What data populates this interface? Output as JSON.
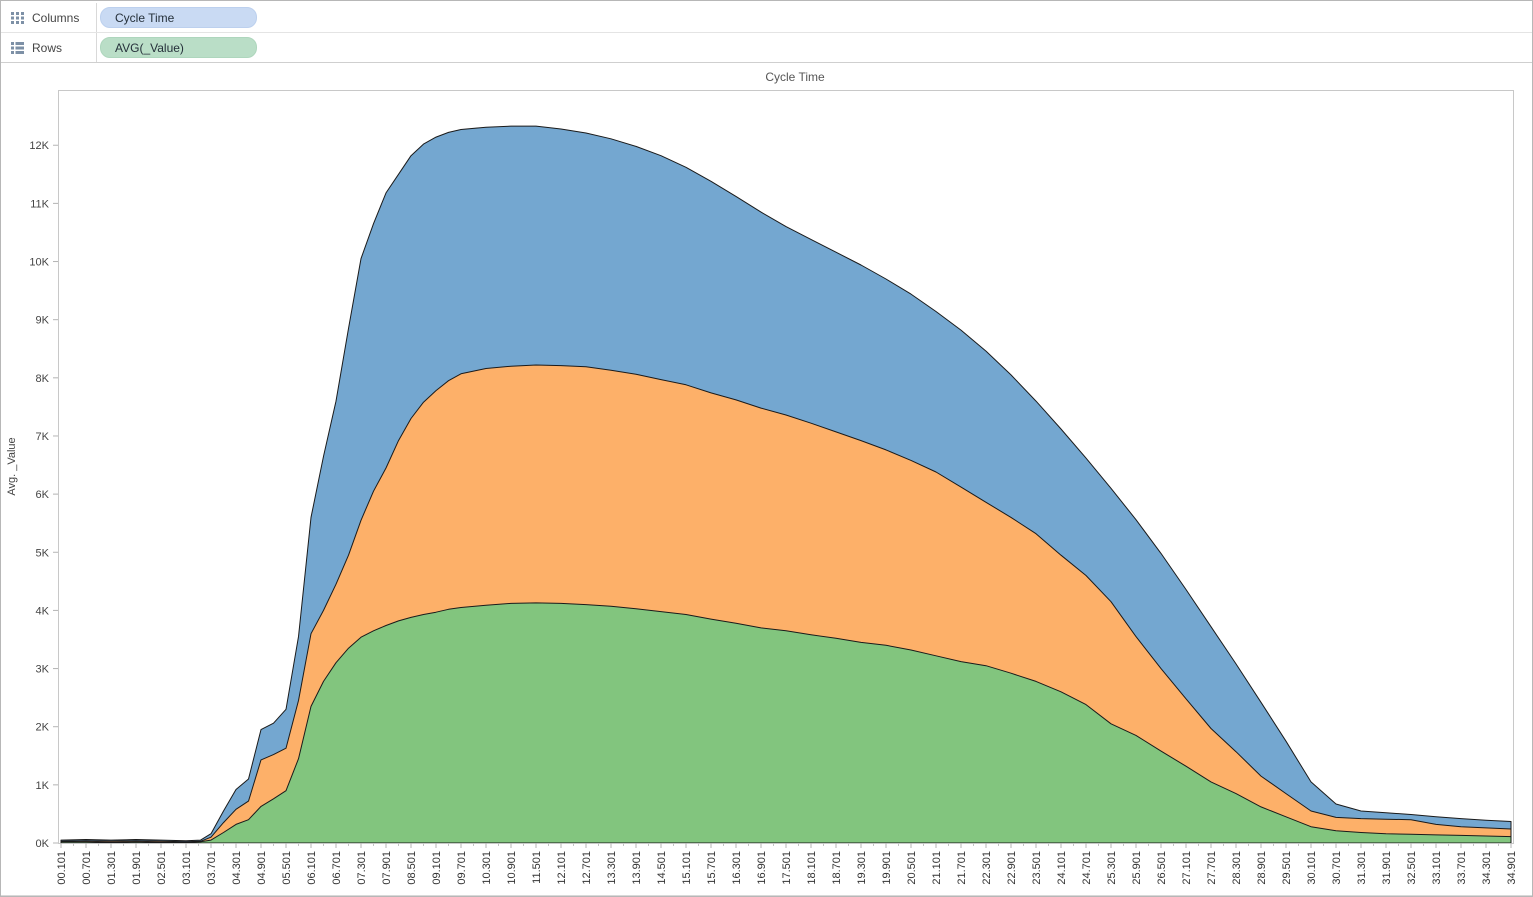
{
  "shelves": {
    "columns": {
      "label": "Columns",
      "pill": "Cycle Time"
    },
    "rows": {
      "label": "Rows",
      "pill": "AVG(_Value)"
    }
  },
  "chart_data": {
    "type": "area",
    "stacked": true,
    "title": "Cycle Time",
    "xlabel": "",
    "ylabel": "Avg. _Value",
    "ylim": [
      0,
      12.95
    ],
    "grid": false,
    "legend": "none",
    "colors": {
      "green": "#82c57e",
      "orange": "#fdb069",
      "blue": "#74a7d0",
      "outline": "#1a1a1a"
    },
    "ytick_labels": [
      "0K",
      "1K",
      "2K",
      "3K",
      "4K",
      "5K",
      "6K",
      "7K",
      "8K",
      "9K",
      "10K",
      "11K",
      "12K"
    ],
    "x_tick_labels": [
      "00.101",
      "00.701",
      "01.301",
      "01.901",
      "02.501",
      "03.101",
      "03.701",
      "04.301",
      "04.901",
      "05.501",
      "06.101",
      "06.701",
      "07.301",
      "07.901",
      "08.501",
      "09.101",
      "09.701",
      "10.301",
      "10.901",
      "11.501",
      "12.101",
      "12.701",
      "13.301",
      "13.901",
      "14.501",
      "15.101",
      "15.701",
      "16.301",
      "16.901",
      "17.501",
      "18.101",
      "18.701",
      "19.301",
      "19.901",
      "20.501",
      "21.101",
      "21.701",
      "22.301",
      "22.901",
      "23.501",
      "24.101",
      "24.701",
      "25.301",
      "25.901",
      "26.501",
      "27.101",
      "27.701",
      "28.301",
      "28.901",
      "29.501",
      "30.101",
      "30.701",
      "31.301",
      "31.901",
      "32.501",
      "33.101",
      "33.701",
      "34.301",
      "34.901"
    ],
    "x_start": 0.101,
    "x_step": 0.6,
    "x": [
      0.101,
      0.701,
      1.301,
      1.901,
      2.501,
      3.101,
      3.451,
      3.701,
      4.001,
      4.301,
      4.601,
      4.901,
      5.201,
      5.501,
      5.801,
      6.101,
      6.401,
      6.701,
      7.001,
      7.301,
      7.601,
      7.901,
      8.201,
      8.501,
      8.801,
      9.101,
      9.401,
      9.701,
      10.301,
      10.901,
      11.501,
      12.101,
      12.701,
      13.301,
      13.901,
      14.501,
      15.101,
      15.701,
      16.301,
      16.901,
      17.501,
      18.101,
      18.701,
      19.301,
      19.901,
      20.501,
      21.101,
      21.701,
      22.301,
      22.901,
      23.501,
      24.101,
      24.701,
      25.301,
      25.901,
      26.501,
      27.101,
      27.701,
      28.301,
      28.901,
      29.501,
      30.101,
      30.701,
      31.301,
      31.901,
      32.501,
      33.101,
      33.701,
      34.301,
      34.901
    ],
    "series": [
      {
        "name": "green",
        "color": "#82c57e",
        "cumulative_values": [
          0.02,
          0.02,
          0.01,
          0.02,
          0.01,
          0.01,
          0.02,
          0.05,
          0.18,
          0.32,
          0.4,
          0.63,
          0.76,
          0.9,
          1.45,
          2.35,
          2.78,
          3.1,
          3.35,
          3.54,
          3.65,
          3.74,
          3.82,
          3.88,
          3.93,
          3.97,
          4.02,
          4.05,
          4.09,
          4.12,
          4.13,
          4.12,
          4.1,
          4.07,
          4.03,
          3.98,
          3.93,
          3.85,
          3.78,
          3.7,
          3.65,
          3.58,
          3.52,
          3.45,
          3.4,
          3.32,
          3.22,
          3.12,
          3.05,
          2.92,
          2.78,
          2.6,
          2.38,
          2.05,
          1.85,
          1.58,
          1.32,
          1.05,
          0.85,
          0.62,
          0.45,
          0.28,
          0.21,
          0.18,
          0.16,
          0.15,
          0.14,
          0.13,
          0.12,
          0.11
        ]
      },
      {
        "name": "orange",
        "color": "#fdb069",
        "cumulative_values": [
          0.03,
          0.04,
          0.03,
          0.04,
          0.03,
          0.02,
          0.03,
          0.1,
          0.35,
          0.58,
          0.72,
          1.43,
          1.52,
          1.63,
          2.45,
          3.6,
          4.0,
          4.45,
          4.95,
          5.55,
          6.05,
          6.45,
          6.92,
          7.3,
          7.58,
          7.78,
          7.95,
          8.07,
          8.16,
          8.2,
          8.22,
          8.21,
          8.19,
          8.13,
          8.06,
          7.97,
          7.88,
          7.74,
          7.62,
          7.48,
          7.36,
          7.22,
          7.07,
          6.92,
          6.76,
          6.58,
          6.38,
          6.12,
          5.86,
          5.6,
          5.32,
          4.95,
          4.6,
          4.15,
          3.55,
          3.0,
          2.48,
          1.97,
          1.57,
          1.15,
          0.85,
          0.55,
          0.44,
          0.42,
          0.41,
          0.4,
          0.32,
          0.28,
          0.26,
          0.24
        ]
      },
      {
        "name": "blue",
        "color": "#74a7d0",
        "cumulative_values": [
          0.05,
          0.06,
          0.05,
          0.06,
          0.05,
          0.04,
          0.05,
          0.16,
          0.55,
          0.92,
          1.1,
          1.95,
          2.06,
          2.3,
          3.55,
          5.6,
          6.65,
          7.6,
          8.85,
          10.05,
          10.65,
          11.18,
          11.5,
          11.82,
          12.02,
          12.14,
          12.22,
          12.27,
          12.31,
          12.33,
          12.33,
          12.28,
          12.21,
          12.11,
          11.98,
          11.82,
          11.62,
          11.38,
          11.12,
          10.85,
          10.6,
          10.38,
          10.16,
          9.94,
          9.7,
          9.44,
          9.14,
          8.82,
          8.46,
          8.05,
          7.6,
          7.12,
          6.62,
          6.1,
          5.56,
          4.98,
          4.36,
          3.72,
          3.08,
          2.42,
          1.75,
          1.05,
          0.67,
          0.55,
          0.52,
          0.49,
          0.45,
          0.42,
          0.39,
          0.37
        ]
      }
    ]
  }
}
